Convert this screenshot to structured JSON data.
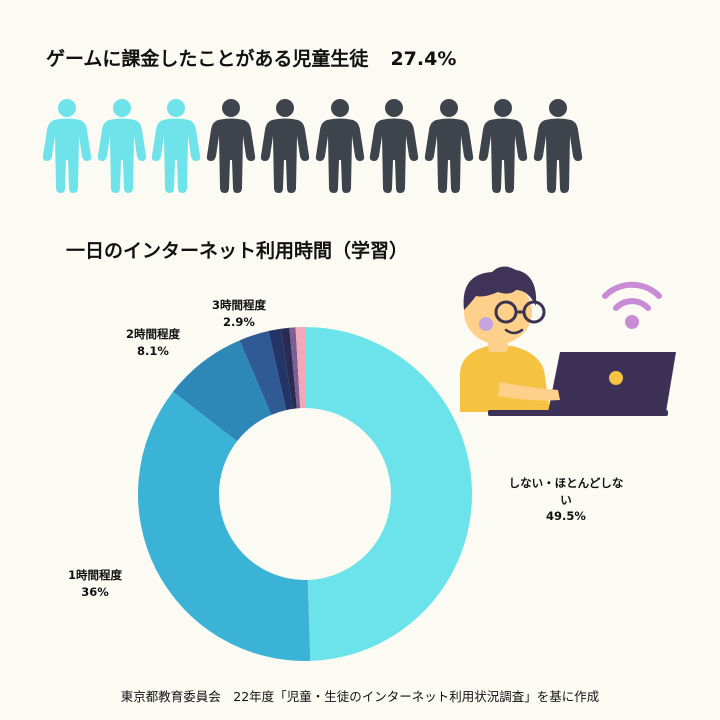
{
  "stat": {
    "label": "ゲームに課金したことがある児童生徒",
    "percent": "27.4%",
    "people_total": 10,
    "people_highlighted": 3,
    "highlight_color": "#6ee3ea",
    "base_color": "#3e444c"
  },
  "chart_title": "一日のインターネット利用時間（学習）",
  "chart_data": {
    "type": "pie",
    "title": "一日のインターネット利用時間（学習）",
    "donut": true,
    "slices": [
      {
        "label": "しない・ほとんどしない",
        "value": 49.5,
        "value_label": "49.5%",
        "color": "#6ce3ea"
      },
      {
        "label": "1時間程度",
        "value": 36,
        "value_label": "36%",
        "color": "#3ab3d6"
      },
      {
        "label": "2時間程度",
        "value": 8.1,
        "value_label": "8.1%",
        "color": "#2d88b8"
      },
      {
        "label": "3時間程度",
        "value": 2.9,
        "value_label": "2.9%",
        "color": "#2f5a93"
      },
      {
        "label": "",
        "value": 1.2,
        "value_label": "",
        "color": "#223566"
      },
      {
        "label": "",
        "value": 0.8,
        "value_label": "",
        "color": "#2b2a52"
      },
      {
        "label": "",
        "value": 0.6,
        "value_label": "",
        "color": "#7a5f92"
      },
      {
        "label": "",
        "value": 0.9,
        "value_label": "",
        "color": "#f2a8b8"
      }
    ]
  },
  "colors": {
    "illustration_hair": "#3f3358",
    "illustration_skin": "#ffd08a",
    "illustration_shirt": "#f5c242",
    "illustration_laptop": "#3e3157",
    "wifi": "#c98bd6"
  },
  "footer": "東京都教育委員会　22年度「児童・生徒のインターネット利用状況調査」を基に作成"
}
